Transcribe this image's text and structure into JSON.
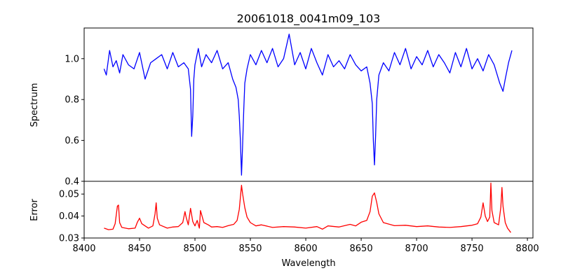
{
  "chart_data": [
    {
      "type": "line",
      "title": "20061018_0041m09_103",
      "xlabel": "",
      "ylabel": "Spectrum",
      "xlim": [
        8400,
        8805
      ],
      "ylim": [
        0.4,
        1.15
      ],
      "yticks": [
        "0.4",
        "0.6",
        "0.8",
        "1.0"
      ],
      "ytick_values": [
        0.4,
        0.6,
        0.8,
        1.0
      ],
      "color": "#0000ff",
      "x": [
        8418,
        8420,
        8423,
        8426,
        8429,
        8432,
        8435,
        8440,
        8445,
        8450,
        8455,
        8460,
        8465,
        8470,
        8475,
        8480,
        8485,
        8490,
        8494,
        8496,
        8497,
        8498,
        8499,
        8500,
        8503,
        8506,
        8510,
        8515,
        8520,
        8525,
        8530,
        8534,
        8537,
        8539,
        8540,
        8541,
        8542,
        8543,
        8544,
        8545,
        8547,
        8550,
        8555,
        8560,
        8565,
        8570,
        8575,
        8580,
        8585,
        8590,
        8595,
        8600,
        8605,
        8610,
        8615,
        8620,
        8625,
        8630,
        8635,
        8640,
        8645,
        8650,
        8655,
        8658,
        8660,
        8661,
        8662,
        8663,
        8664,
        8666,
        8670,
        8675,
        8680,
        8685,
        8690,
        8695,
        8700,
        8705,
        8710,
        8715,
        8720,
        8725,
        8730,
        8735,
        8740,
        8745,
        8750,
        8755,
        8760,
        8765,
        8770,
        8775,
        8778,
        8780,
        8783,
        8786
      ],
      "y": [
        0.95,
        0.92,
        1.04,
        0.96,
        0.99,
        0.93,
        1.02,
        0.97,
        0.95,
        1.03,
        0.9,
        0.98,
        1.0,
        1.02,
        0.95,
        1.03,
        0.96,
        0.98,
        0.95,
        0.85,
        0.62,
        0.72,
        0.9,
        0.97,
        1.05,
        0.96,
        1.02,
        0.98,
        1.04,
        0.95,
        0.98,
        0.9,
        0.86,
        0.8,
        0.72,
        0.6,
        0.43,
        0.58,
        0.75,
        0.88,
        0.95,
        1.02,
        0.97,
        1.04,
        0.98,
        1.05,
        0.96,
        1.0,
        1.12,
        0.97,
        1.03,
        0.95,
        1.05,
        0.98,
        0.92,
        1.02,
        0.96,
        0.99,
        0.95,
        1.02,
        0.97,
        0.94,
        0.96,
        0.88,
        0.78,
        0.6,
        0.48,
        0.62,
        0.8,
        0.92,
        0.98,
        0.94,
        1.03,
        0.97,
        1.05,
        0.95,
        1.01,
        0.97,
        1.04,
        0.96,
        1.02,
        0.98,
        0.93,
        1.03,
        0.96,
        1.05,
        0.95,
        1.0,
        0.94,
        1.02,
        0.97,
        0.88,
        0.84,
        0.9,
        0.98,
        1.04
      ]
    },
    {
      "type": "line",
      "title": "",
      "xlabel": "Wavelength",
      "ylabel": "Error",
      "xlim": [
        8400,
        8805
      ],
      "ylim": [
        0.03,
        0.0558
      ],
      "xticks": [
        "8400",
        "8450",
        "8500",
        "8550",
        "8600",
        "8650",
        "8700",
        "8750",
        "8800"
      ],
      "xtick_values": [
        8400,
        8450,
        8500,
        8550,
        8600,
        8650,
        8700,
        8750,
        8800
      ],
      "yticks": [
        "0.03",
        "0.04",
        "0.05"
      ],
      "ytick_values": [
        0.03,
        0.04,
        0.05
      ],
      "color": "#ff0000",
      "x": [
        8418,
        8422,
        8426,
        8428,
        8430,
        8431,
        8432,
        8434,
        8440,
        8446,
        8448,
        8450,
        8452,
        8458,
        8462,
        8464,
        8465,
        8466,
        8468,
        8475,
        8480,
        8485,
        8489,
        8491,
        8492,
        8494,
        8496,
        8498,
        8500,
        8502,
        8504,
        8505,
        8508,
        8512,
        8515,
        8520,
        8525,
        8530,
        8535,
        8538,
        8540,
        8542,
        8543,
        8545,
        8547,
        8550,
        8555,
        8560,
        8570,
        8580,
        8590,
        8600,
        8610,
        8615,
        8620,
        8630,
        8640,
        8645,
        8650,
        8655,
        8658,
        8660,
        8662,
        8664,
        8666,
        8670,
        8680,
        8690,
        8700,
        8710,
        8720,
        8730,
        8740,
        8750,
        8755,
        8758,
        8760,
        8762,
        8764,
        8766,
        8767,
        8768,
        8770,
        8774,
        8776,
        8777,
        8778,
        8780,
        8782,
        8785
      ],
      "y": [
        0.0345,
        0.0338,
        0.034,
        0.0365,
        0.0445,
        0.045,
        0.037,
        0.0348,
        0.0342,
        0.0345,
        0.0372,
        0.039,
        0.0365,
        0.0345,
        0.0355,
        0.041,
        0.046,
        0.039,
        0.036,
        0.0345,
        0.035,
        0.0352,
        0.037,
        0.042,
        0.0395,
        0.036,
        0.0435,
        0.0375,
        0.0355,
        0.038,
        0.0345,
        0.0425,
        0.037,
        0.036,
        0.035,
        0.0352,
        0.0348,
        0.0356,
        0.0362,
        0.038,
        0.043,
        0.054,
        0.05,
        0.0438,
        0.0395,
        0.037,
        0.0355,
        0.036,
        0.0348,
        0.0352,
        0.035,
        0.0345,
        0.0352,
        0.034,
        0.0355,
        0.035,
        0.0362,
        0.0355,
        0.0372,
        0.038,
        0.042,
        0.049,
        0.0505,
        0.0462,
        0.041,
        0.037,
        0.0356,
        0.0358,
        0.0352,
        0.0355,
        0.035,
        0.0348,
        0.0352,
        0.0358,
        0.0365,
        0.0395,
        0.046,
        0.04,
        0.0375,
        0.0395,
        0.055,
        0.0425,
        0.037,
        0.036,
        0.044,
        0.053,
        0.0445,
        0.037,
        0.0345,
        0.0325
      ]
    }
  ]
}
